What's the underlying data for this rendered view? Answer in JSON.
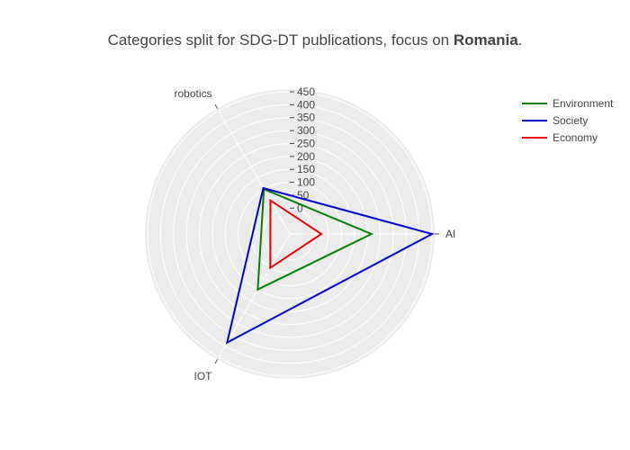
{
  "chart_data": {
    "type": "radar",
    "title_prefix": "Categories split for SDG-DT publications, focus on ",
    "title_bold": "Romania",
    "title_suffix": ".",
    "axes": [
      "AI",
      "robotics",
      "IOT"
    ],
    "radial_range": [
      -100,
      450
    ],
    "radial_ticks": [
      0,
      50,
      100,
      150,
      200,
      250,
      300,
      350,
      400,
      450
    ],
    "grid": true,
    "legend_position": "top-right",
    "series": [
      {
        "name": "Environment",
        "color": "#008000",
        "values": [
          216,
          100,
          148
        ]
      },
      {
        "name": "Society",
        "color": "#0000cd",
        "values": [
          450,
          105,
          385
        ]
      },
      {
        "name": "Economy",
        "color": "#ee0000",
        "values": [
          22,
          50,
          51
        ]
      }
    ]
  }
}
